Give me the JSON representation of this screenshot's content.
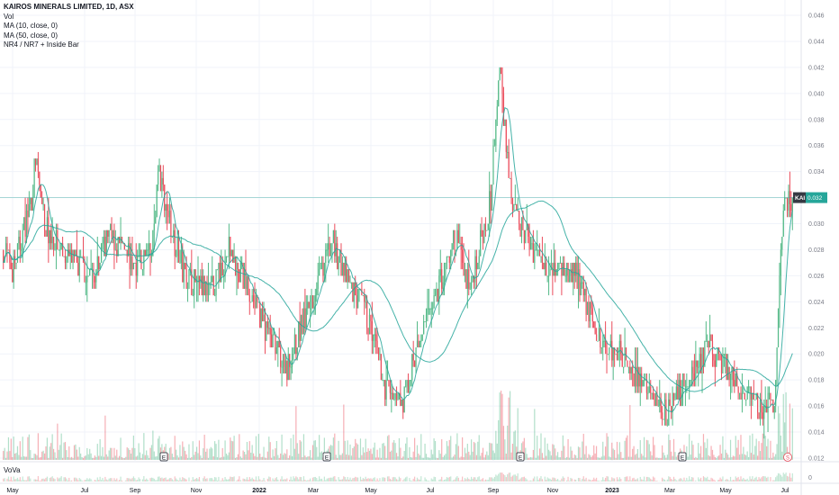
{
  "legend": {
    "title": "KAIROS MINERALS LIMITED, 1D, ASX",
    "vol": "Vol",
    "ma10": "MA (10, close, 0)",
    "ma50": "MA (50, close, 0)",
    "nr": "NR4 / NR7 + Inside Bar"
  },
  "vova_label": "VoVa",
  "colors": {
    "up": "#53b987",
    "down": "#eb4d5c",
    "ma": "#26a69a",
    "price_line": "#26a69a",
    "axis_text": "#787b86",
    "grid": "#f0f3fa"
  },
  "chart_data": {
    "type": "candlestick",
    "symbol": "KAI",
    "last_price_label": "0.032",
    "y_ticks": [
      "0.046",
      "0.044",
      "0.042",
      "0.040",
      "0.038",
      "0.036",
      "0.034",
      "0.032",
      "0.030",
      "0.028",
      "0.026",
      "0.024",
      "0.022",
      "0.020",
      "0.018",
      "0.016",
      "0.014",
      "0.012"
    ],
    "ylim": [
      0.012,
      0.046
    ],
    "last_price": 0.032,
    "x_ticks": [
      "May",
      "Jul",
      "Sep",
      "Nov",
      "2022",
      "Mar",
      "May",
      "Jul",
      "Sep",
      "Nov",
      "2023",
      "Mar",
      "May",
      "Jul"
    ],
    "earnings_markers": [
      "E",
      "E",
      "E",
      "E"
    ],
    "split_marker": "S",
    "vova_zero_tick": "0",
    "keypoints": [
      [
        0,
        0.028
      ],
      [
        8,
        0.0265
      ],
      [
        22,
        0.032
      ],
      [
        25,
        0.035
      ],
      [
        32,
        0.03
      ],
      [
        48,
        0.0275
      ],
      [
        68,
        0.026
      ],
      [
        82,
        0.029
      ],
      [
        100,
        0.027
      ],
      [
        115,
        0.0275
      ],
      [
        120,
        0.034
      ],
      [
        140,
        0.026
      ],
      [
        160,
        0.0245
      ],
      [
        175,
        0.028
      ],
      [
        190,
        0.025
      ],
      [
        208,
        0.021
      ],
      [
        220,
        0.019
      ],
      [
        240,
        0.0245
      ],
      [
        255,
        0.0285
      ],
      [
        268,
        0.0255
      ],
      [
        282,
        0.023
      ],
      [
        296,
        0.0175
      ],
      [
        310,
        0.016
      ],
      [
        318,
        0.0195
      ],
      [
        332,
        0.0235
      ],
      [
        350,
        0.029
      ],
      [
        362,
        0.025
      ],
      [
        378,
        0.032
      ],
      [
        385,
        0.042
      ],
      [
        395,
        0.031
      ],
      [
        405,
        0.029
      ],
      [
        420,
        0.027
      ],
      [
        445,
        0.026
      ],
      [
        462,
        0.021
      ],
      [
        480,
        0.02
      ],
      [
        500,
        0.017
      ],
      [
        515,
        0.0155
      ],
      [
        530,
        0.018
      ],
      [
        548,
        0.0205
      ],
      [
        560,
        0.019
      ],
      [
        575,
        0.0165
      ],
      [
        590,
        0.0158
      ],
      [
        598,
        0.016
      ],
      [
        603,
        0.0285
      ],
      [
        606,
        0.0315
      ],
      [
        612,
        0.032
      ]
    ]
  }
}
